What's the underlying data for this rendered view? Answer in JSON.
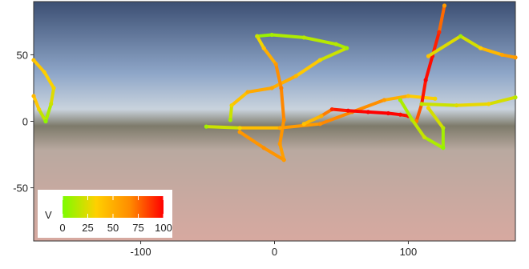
{
  "chart_data": {
    "type": "scatter",
    "xlim": [
      -180,
      180
    ],
    "ylim": [
      -90,
      90
    ],
    "xticks": [
      -100,
      0,
      100
    ],
    "yticks": [
      -50,
      0,
      50
    ],
    "colorbar": {
      "label": "V",
      "clim": [
        0,
        100
      ],
      "ticks": [
        0,
        25,
        50,
        75,
        100
      ],
      "colors": [
        "#7cfc00",
        "#ffd000",
        "#ff8c00",
        "#ff0000"
      ],
      "position": "lower left"
    },
    "series": [
      {
        "x": [
          -180,
          -172,
          -165,
          -167,
          -171
        ],
        "y": [
          46,
          37,
          25,
          13,
          0
        ],
        "values": [
          40,
          35,
          30,
          20,
          5
        ]
      },
      {
        "x": [
          -180,
          -176,
          -171
        ],
        "y": [
          19,
          9,
          0
        ],
        "values": [
          45,
          30,
          5
        ]
      },
      {
        "x": [
          -13,
          -2,
          22,
          46,
          54,
          34,
          16,
          -2,
          -20,
          -32,
          -33
        ],
        "y": [
          64,
          65,
          63,
          58,
          55,
          46,
          34,
          25,
          22,
          12,
          1
        ],
        "values": [
          5,
          10,
          15,
          15,
          10,
          30,
          45,
          55,
          50,
          30,
          10
        ]
      },
      {
        "x": [
          -13,
          -8,
          1,
          5,
          7,
          4,
          7
        ],
        "y": [
          64,
          55,
          43,
          25,
          1,
          -17,
          -29
        ],
        "values": [
          20,
          40,
          60,
          70,
          65,
          60,
          55
        ]
      },
      {
        "x": [
          -51,
          -26,
          4,
          34,
          58,
          82,
          100,
          120
        ],
        "y": [
          -4,
          -5,
          -5,
          -2,
          7,
          16,
          19,
          17
        ],
        "values": [
          10,
          30,
          55,
          65,
          70,
          60,
          40,
          30
        ]
      },
      {
        "x": [
          -26,
          -8,
          7
        ],
        "y": [
          -8,
          -20,
          -29
        ],
        "values": [
          60,
          65,
          60
        ]
      },
      {
        "x": [
          22,
          35,
          43,
          55,
          70,
          85,
          94,
          100
        ],
        "y": [
          -2,
          4,
          9,
          8,
          7,
          6,
          5,
          4
        ],
        "values": [
          40,
          50,
          90,
          98,
          100,
          100,
          98,
          95
        ]
      },
      {
        "x": [
          127,
          123,
          118,
          113,
          110,
          106
        ],
        "y": [
          87,
          67,
          49,
          31,
          13,
          0
        ],
        "values": [
          60,
          90,
          95,
          100,
          90,
          70
        ]
      },
      {
        "x": [
          115,
          139,
          154,
          170,
          180
        ],
        "y": [
          49,
          64,
          55,
          50,
          48
        ],
        "values": [
          40,
          10,
          35,
          55,
          60
        ]
      },
      {
        "x": [
          110,
          136,
          160,
          180
        ],
        "y": [
          13,
          12,
          13,
          18
        ],
        "values": [
          15,
          25,
          30,
          15
        ]
      },
      {
        "x": [
          94,
          103,
          112,
          126,
          126,
          115
        ],
        "y": [
          16,
          1,
          -12,
          -20,
          -5,
          10
        ],
        "values": [
          10,
          15,
          20,
          5,
          15,
          30
        ]
      }
    ]
  }
}
